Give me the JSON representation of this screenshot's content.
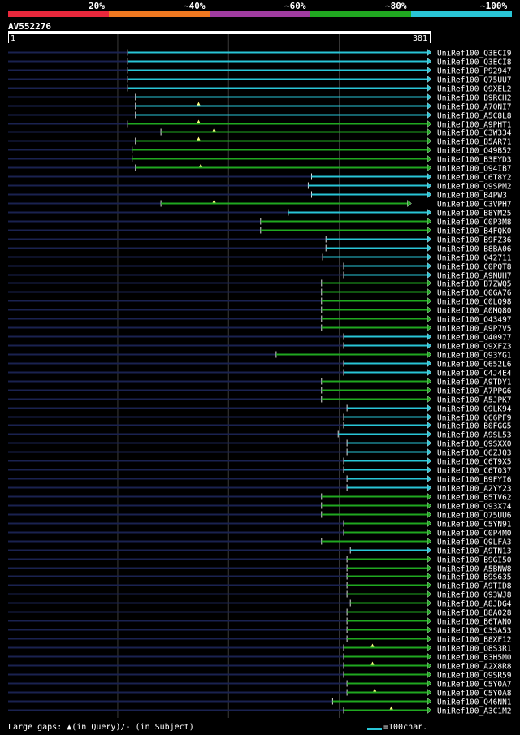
{
  "legend": {
    "items": [
      {
        "label": "20%",
        "color": "#e8283c"
      },
      {
        "label": "~40%",
        "color": "#f07820"
      },
      {
        "label": "~60%",
        "color": "#a03ca0"
      },
      {
        "label": "~80%",
        "color": "#20a820"
      },
      {
        "label": "~100%",
        "color": "#29c5d6"
      }
    ]
  },
  "query": {
    "name": "AV552276",
    "start_label": "1",
    "end_label": "381",
    "length": 381
  },
  "footer": {
    "gap_text": "Large gaps: ▲(in Query)/- (in Subject)",
    "scale_text": "=100char."
  },
  "hits": [
    {
      "name": "UniRef100_Q3ECI9",
      "start": 109,
      "color": "cyan"
    },
    {
      "name": "UniRef100_Q3ECI8",
      "start": 109,
      "color": "cyan"
    },
    {
      "name": "UniRef100_P92947",
      "start": 109,
      "color": "cyan"
    },
    {
      "name": "UniRef100_Q75UU7",
      "start": 109,
      "color": "cyan"
    },
    {
      "name": "UniRef100_Q9XEL2",
      "start": 109,
      "color": "cyan"
    },
    {
      "name": "UniRef100_B9RCH2",
      "start": 116,
      "color": "cyan"
    },
    {
      "name": "UniRef100_A7QNI7",
      "start": 116,
      "color": "cyan",
      "query_gap": 173
    },
    {
      "name": "UniRef100_A5C8L8",
      "start": 116,
      "color": "cyan"
    },
    {
      "name": "UniRef100_A9PHT1",
      "start": 109,
      "color": "green",
      "query_gap": 173
    },
    {
      "name": "UniRef100_C3W334",
      "start": 139,
      "color": "green",
      "query_gap": 187
    },
    {
      "name": "UniRef100_B5AR71",
      "start": 116,
      "color": "green",
      "query_gap": 173
    },
    {
      "name": "UniRef100_Q49B52",
      "start": 113,
      "color": "green"
    },
    {
      "name": "UniRef100_B3EYD3",
      "start": 113,
      "color": "green"
    },
    {
      "name": "UniRef100_Q94IB7",
      "start": 116,
      "color": "green",
      "query_gap": 175
    },
    {
      "name": "UniRef100_C6T8Y2",
      "start": 275,
      "color": "cyan"
    },
    {
      "name": "UniRef100_Q9SPM2",
      "start": 272,
      "color": "cyan"
    },
    {
      "name": "UniRef100_B4PW3",
      "start": 275,
      "color": "cyan"
    },
    {
      "name": "UniRef100_C3VPH7",
      "start": 139,
      "end": 363,
      "color": "green",
      "query_gap": 187
    },
    {
      "name": "UniRef100_B8YM25",
      "start": 254,
      "color": "cyan"
    },
    {
      "name": "UniRef100_C0P3M8",
      "start": 229,
      "color": "green"
    },
    {
      "name": "UniRef100_B4FQK0",
      "start": 229,
      "color": "green"
    },
    {
      "name": "UniRef100_B9FZ36",
      "start": 288,
      "color": "cyan"
    },
    {
      "name": "UniRef100_B8BA06",
      "start": 288,
      "color": "cyan"
    },
    {
      "name": "UniRef100_Q42711",
      "start": 285,
      "color": "cyan"
    },
    {
      "name": "UniRef100_C0PQT8",
      "start": 304,
      "color": "cyan"
    },
    {
      "name": "UniRef100_A9NUH7",
      "start": 304,
      "color": "cyan"
    },
    {
      "name": "UniRef100_B7ZWQ5",
      "start": 284,
      "color": "green"
    },
    {
      "name": "UniRef100_Q0GA76",
      "start": 284,
      "color": "green"
    },
    {
      "name": "UniRef100_C0LQ98",
      "start": 284,
      "color": "green"
    },
    {
      "name": "UniRef100_A0MQ80",
      "start": 284,
      "color": "green"
    },
    {
      "name": "UniRef100_Q43497",
      "start": 284,
      "color": "green"
    },
    {
      "name": "UniRef100_A9P7V5",
      "start": 284,
      "color": "green"
    },
    {
      "name": "UniRef100_Q40977",
      "start": 304,
      "color": "cyan"
    },
    {
      "name": "UniRef100_Q9XFZ3",
      "start": 304,
      "color": "cyan"
    },
    {
      "name": "UniRef100_Q93YG1",
      "start": 243,
      "color": "green"
    },
    {
      "name": "UniRef100_Q652L6",
      "start": 304,
      "color": "cyan"
    },
    {
      "name": "UniRef100_C4J4E4",
      "start": 304,
      "color": "cyan"
    },
    {
      "name": "UniRef100_A9TDY1",
      "start": 284,
      "color": "green"
    },
    {
      "name": "UniRef100_A7PPG6",
      "start": 284,
      "color": "green"
    },
    {
      "name": "UniRef100_A5JPK7",
      "start": 284,
      "color": "green"
    },
    {
      "name": "UniRef100_Q9LK94",
      "start": 307,
      "color": "cyan"
    },
    {
      "name": "UniRef100_Q66PF9",
      "start": 304,
      "color": "cyan"
    },
    {
      "name": "UniRef100_B0FGG5",
      "start": 304,
      "color": "cyan"
    },
    {
      "name": "UniRef100_A9SL53",
      "start": 299,
      "color": "cyan"
    },
    {
      "name": "UniRef100_Q9SXX0",
      "start": 307,
      "color": "cyan"
    },
    {
      "name": "UniRef100_Q6ZJQ3",
      "start": 307,
      "color": "cyan"
    },
    {
      "name": "UniRef100_C6T9X5",
      "start": 304,
      "color": "cyan"
    },
    {
      "name": "UniRef100_C6T037",
      "start": 304,
      "color": "cyan"
    },
    {
      "name": "UniRef100_B9FYI6",
      "start": 307,
      "color": "cyan"
    },
    {
      "name": "UniRef100_A2YY23",
      "start": 307,
      "color": "cyan"
    },
    {
      "name": "UniRef100_B5TV62",
      "start": 284,
      "color": "green"
    },
    {
      "name": "UniRef100_Q93X74",
      "start": 284,
      "color": "green"
    },
    {
      "name": "UniRef100_Q75UU6",
      "start": 284,
      "color": "green"
    },
    {
      "name": "UniRef100_C5YN91",
      "start": 304,
      "color": "green"
    },
    {
      "name": "UniRef100_C0P4M0",
      "start": 304,
      "color": "green"
    },
    {
      "name": "UniRef100_Q9LFA3",
      "start": 284,
      "color": "green"
    },
    {
      "name": "UniRef100_A9TN13",
      "start": 310,
      "color": "cyan"
    },
    {
      "name": "UniRef100_B9GI50",
      "start": 307,
      "color": "green"
    },
    {
      "name": "UniRef100_A5BNW8",
      "start": 307,
      "color": "green"
    },
    {
      "name": "UniRef100_B9S635",
      "start": 307,
      "color": "green"
    },
    {
      "name": "UniRef100_A9TID8",
      "start": 307,
      "color": "green"
    },
    {
      "name": "UniRef100_Q93WJ8",
      "start": 307,
      "color": "green"
    },
    {
      "name": "UniRef100_A8JDG4",
      "start": 310,
      "color": "green"
    },
    {
      "name": "UniRef100_B8A028",
      "start": 307,
      "color": "green"
    },
    {
      "name": "UniRef100_B6TAN0",
      "start": 307,
      "color": "green"
    },
    {
      "name": "UniRef100_C3SA53",
      "start": 307,
      "color": "green"
    },
    {
      "name": "UniRef100_B8XF12",
      "start": 307,
      "color": "green"
    },
    {
      "name": "UniRef100_Q8S3R1",
      "start": 304,
      "color": "green",
      "query_gap": 330
    },
    {
      "name": "UniRef100_B3H5M0",
      "start": 304,
      "color": "green"
    },
    {
      "name": "UniRef100_A2X8R8",
      "start": 304,
      "color": "green",
      "query_gap": 330
    },
    {
      "name": "UniRef100_Q9SR59",
      "start": 304,
      "color": "green"
    },
    {
      "name": "UniRef100_C5Y0A7",
      "start": 307,
      "color": "green"
    },
    {
      "name": "UniRef100_C5Y0A8",
      "start": 307,
      "color": "green",
      "query_gap": 332
    },
    {
      "name": "UniRef100_Q46NN1",
      "start": 294,
      "color": "green"
    },
    {
      "name": "UniRef100_A3C1M2",
      "start": 304,
      "color": "green",
      "query_gap": 347
    }
  ]
}
